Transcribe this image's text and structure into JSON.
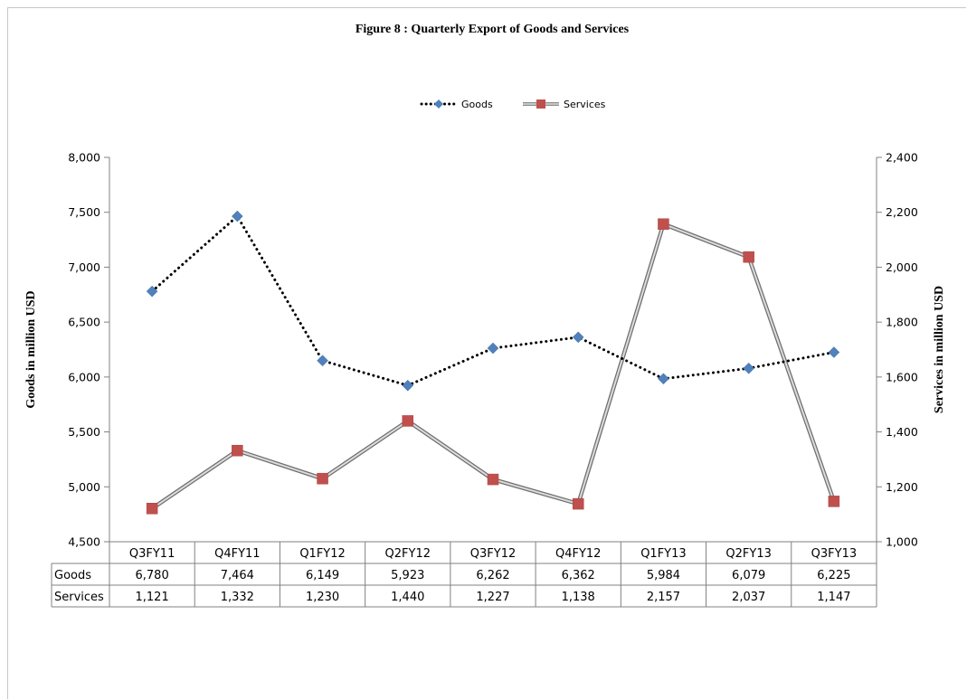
{
  "chart_data": {
    "type": "line",
    "title": "Figure  8 : Quarterly Export of Goods and Services",
    "categories": [
      "Q3FY11",
      "Q4FY11",
      "Q1FY12",
      "Q2FY12",
      "Q3FY12",
      "Q4FY12",
      "Q1FY13",
      "Q2FY13",
      "Q3FY13"
    ],
    "series": [
      {
        "name": "Goods",
        "axis": "left",
        "style": "dotted",
        "marker": "diamond",
        "color": "#4f81bd",
        "line_color": "#000000",
        "values": [
          6780,
          7464,
          6149,
          5923,
          6262,
          6362,
          5984,
          6079,
          6225
        ],
        "labels": [
          "6,780",
          "7,464",
          "6,149",
          "5,923",
          "6,262",
          "6,362",
          "5,984",
          "6,079",
          "6,225"
        ]
      },
      {
        "name": "Services",
        "axis": "right",
        "style": "solid-gradient",
        "marker": "square",
        "color": "#c0504d",
        "line_color": "#999999",
        "values": [
          1121,
          1332,
          1230,
          1440,
          1227,
          1138,
          2157,
          2037,
          1147
        ],
        "labels": [
          "1,121",
          "1,332",
          "1,230",
          "1,440",
          "1,227",
          "1,138",
          "2,157",
          "2,037",
          "1,147"
        ]
      }
    ],
    "ylabel": "Goods in million  USD",
    "y2label": "Services in million  USD",
    "ylim": [
      4500,
      8000
    ],
    "y2lim": [
      1000,
      2400
    ],
    "yticks": [
      "4,500",
      "5,000",
      "5,500",
      "6,000",
      "6,500",
      "7,000",
      "7,500",
      "8,000"
    ],
    "y2ticks": [
      "1,000",
      "1,200",
      "1,400",
      "1,600",
      "1,800",
      "2,000",
      "2,200",
      "2,400"
    ],
    "legend_position": "top-center",
    "data_table": true,
    "grid": false
  }
}
